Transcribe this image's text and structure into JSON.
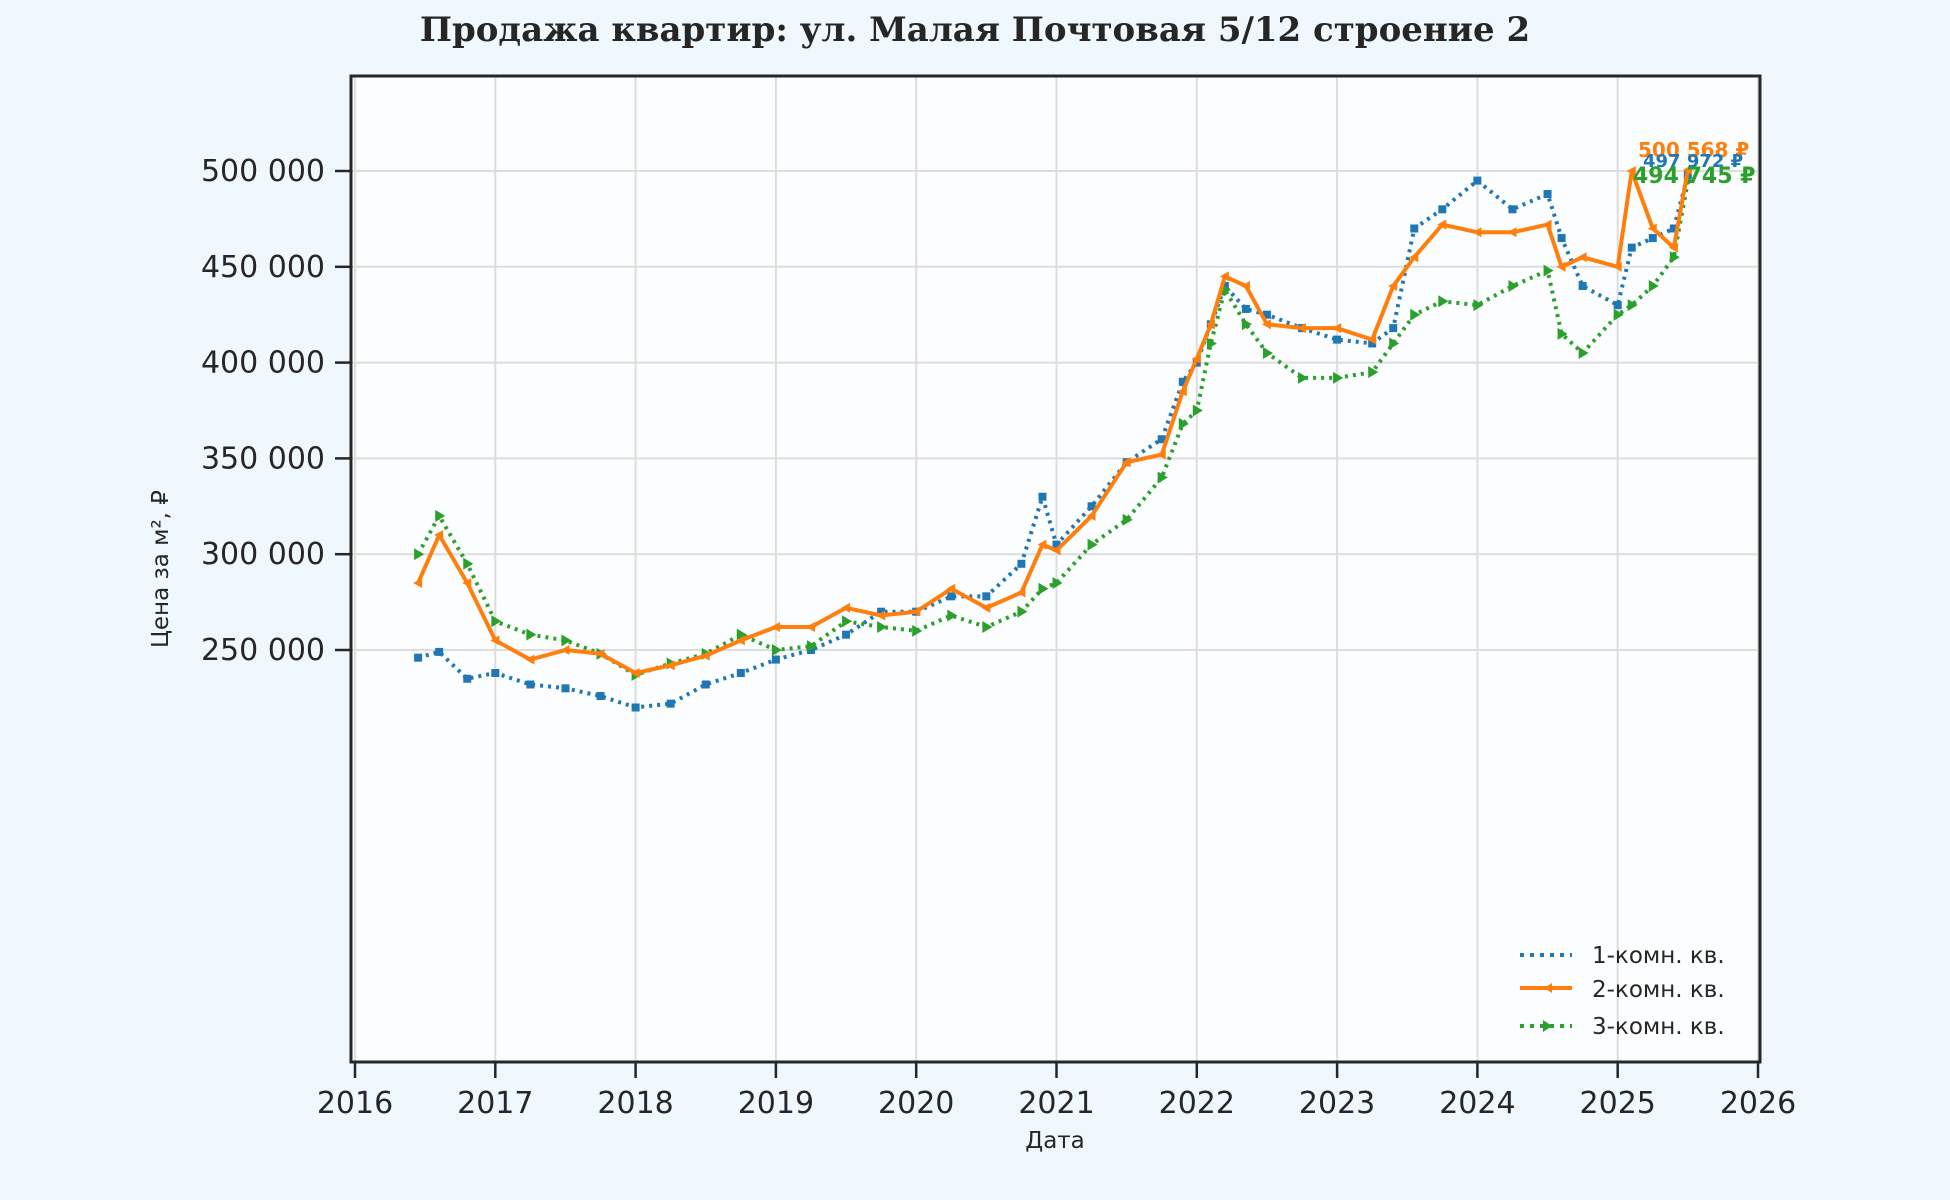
{
  "title": "Продажа квартир: ул. Малая Почтовая 5/12 строение 2",
  "chart_data": {
    "type": "line",
    "title": "Продажа квартир: ул. Малая Почтовая 5/12 строение 2",
    "xlabel": "Дата",
    "ylabel": "Цена за м², ₽",
    "xlim": [
      2016,
      2026
    ],
    "ylim": [
      205000,
      540000
    ],
    "x_ticks": [
      "2016",
      "2017",
      "2018",
      "2019",
      "2020",
      "2021",
      "2022",
      "2023",
      "2024",
      "2025",
      "2026"
    ],
    "y_ticks": [
      "250 000",
      "300 000",
      "350 000",
      "400 000",
      "450 000",
      "500 000"
    ],
    "y_tick_values": [
      250000,
      300000,
      350000,
      400000,
      450000,
      500000
    ],
    "grid": true,
    "legend_position": "lower right",
    "x": [
      2016.45,
      2016.6,
      2016.8,
      2017.0,
      2017.25,
      2017.5,
      2017.75,
      2018.0,
      2018.25,
      2018.5,
      2018.75,
      2019.0,
      2019.25,
      2019.5,
      2019.75,
      2020.0,
      2020.25,
      2020.5,
      2020.75,
      2020.9,
      2021.0,
      2021.25,
      2021.5,
      2021.75,
      2021.9,
      2022.0,
      2022.1,
      2022.2,
      2022.35,
      2022.5,
      2022.75,
      2023.0,
      2023.25,
      2023.4,
      2023.55,
      2023.75,
      2024.0,
      2024.25,
      2024.5,
      2024.6,
      2024.75,
      2025.0,
      2025.1,
      2025.25,
      2025.4,
      2025.5
    ],
    "series": [
      {
        "name": "1-комн. кв.",
        "color": "#1f77b4",
        "style": "dotted",
        "marker": "x",
        "values": [
          246000,
          249000,
          235000,
          238000,
          232000,
          230000,
          226000,
          220000,
          222000,
          232000,
          238000,
          245000,
          250000,
          258000,
          270000,
          270000,
          278000,
          278000,
          295000,
          330000,
          305000,
          325000,
          348000,
          360000,
          390000,
          400000,
          420000,
          440000,
          428000,
          425000,
          418000,
          412000,
          410000,
          418000,
          470000,
          480000,
          495000,
          480000,
          488000,
          465000,
          440000,
          430000,
          460000,
          465000,
          470000,
          497972
        ]
      },
      {
        "name": "2-комн. кв.",
        "color": "#ff7f0e",
        "style": "solid",
        "marker": "<",
        "values": [
          285000,
          310000,
          285000,
          255000,
          245000,
          250000,
          248000,
          238000,
          242000,
          247000,
          255000,
          262000,
          262000,
          272000,
          268000,
          270000,
          282000,
          272000,
          280000,
          305000,
          302000,
          320000,
          348000,
          352000,
          385000,
          402000,
          420000,
          445000,
          440000,
          420000,
          418000,
          418000,
          412000,
          440000,
          455000,
          472000,
          468000,
          468000,
          472000,
          450000,
          455000,
          450000,
          500000,
          470000,
          460000,
          500568
        ]
      },
      {
        "name": "3-комн. кв.",
        "color": "#2ca02c",
        "style": "dotted",
        "marker": ">",
        "values": [
          300000,
          320000,
          295000,
          265000,
          258000,
          255000,
          248000,
          237000,
          243000,
          248000,
          258000,
          250000,
          252000,
          265000,
          262000,
          260000,
          268000,
          262000,
          270000,
          282000,
          285000,
          305000,
          318000,
          340000,
          368000,
          375000,
          410000,
          438000,
          420000,
          405000,
          392000,
          392000,
          395000,
          410000,
          425000,
          432000,
          430000,
          440000,
          448000,
          415000,
          405000,
          425000,
          430000,
          440000,
          455000,
          494745
        ]
      }
    ],
    "annotations": [
      "500 568 ₽",
      "497 972 ₽",
      "494 745 ₽"
    ]
  },
  "legend": {
    "items": [
      {
        "label": "1-комн. кв.",
        "color": "#1f77b4"
      },
      {
        "label": "2-комн. кв.",
        "color": "#ff7f0e"
      },
      {
        "label": "3-комн. кв.",
        "color": "#2ca02c"
      }
    ]
  },
  "axes": {
    "xlabel": "Дата",
    "ylabel": "Цена за м², ₽"
  },
  "annotations": {
    "two_room": "500 568 ₽",
    "one_room": "497 972 ₽",
    "three_room": "494 745 ₽"
  }
}
